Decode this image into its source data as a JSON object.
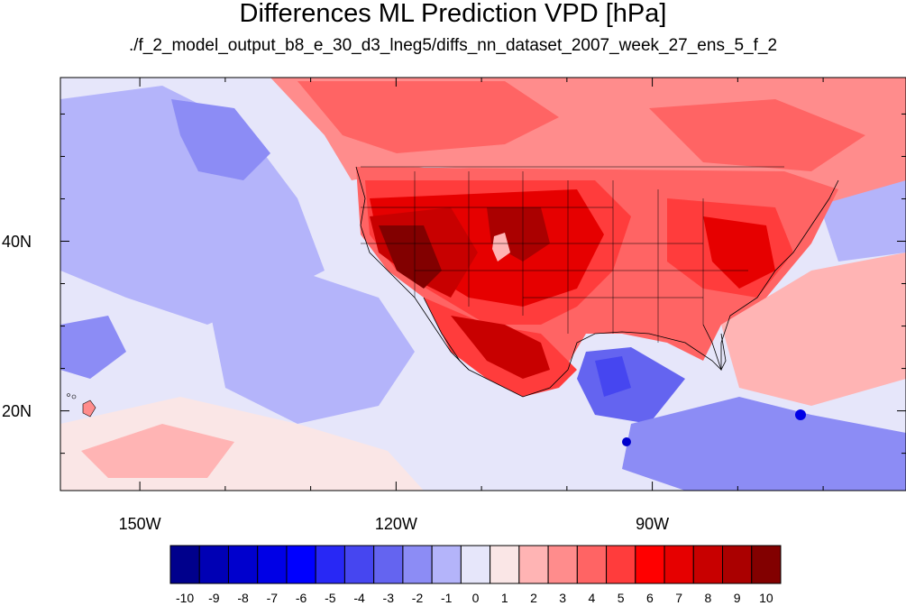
{
  "title": "Differences ML Prediction VPD [hPa]",
  "subtitle": "./f_2_model_output_b8_e_30_d3_lneg5/diffs_nn_dataset_2007_week_27_ens_5_f_2",
  "y_ticks": [
    {
      "label": "40N",
      "lat": 40
    },
    {
      "label": "20N",
      "lat": 20
    }
  ],
  "x_ticks": [
    {
      "label": "150W",
      "lon": -150
    },
    {
      "label": "120W",
      "lon": -120
    },
    {
      "label": "90W",
      "lon": -90
    }
  ],
  "extent": {
    "lon_min": -159.3,
    "lon_max": -60.3,
    "lat_min": 10.6,
    "lat_max": 59.3
  },
  "colorbar": {
    "labels": [
      "-10",
      "-9",
      "-8",
      "-7",
      "-6",
      "-5",
      "-4",
      "-3",
      "-2",
      "-1",
      "0",
      "1",
      "2",
      "3",
      "4",
      "5",
      "6",
      "7",
      "8",
      "9",
      "10"
    ],
    "colors": [
      "#00008c",
      "#0000b4",
      "#0000cd",
      "#0000e6",
      "#0000ff",
      "#2828f5",
      "#4646f0",
      "#6464f0",
      "#8c8cf5",
      "#b4b4fa",
      "#e6e6fa",
      "#fae6e6",
      "#ffb4b4",
      "#ff8c8c",
      "#ff6464",
      "#ff3c3c",
      "#ff0000",
      "#e60000",
      "#c80000",
      "#aa0000",
      "#820000"
    ]
  },
  "colors": {
    "ocean_base": "#e6e6fa",
    "land_base": "#ff8c8c",
    "border": "#000000"
  }
}
